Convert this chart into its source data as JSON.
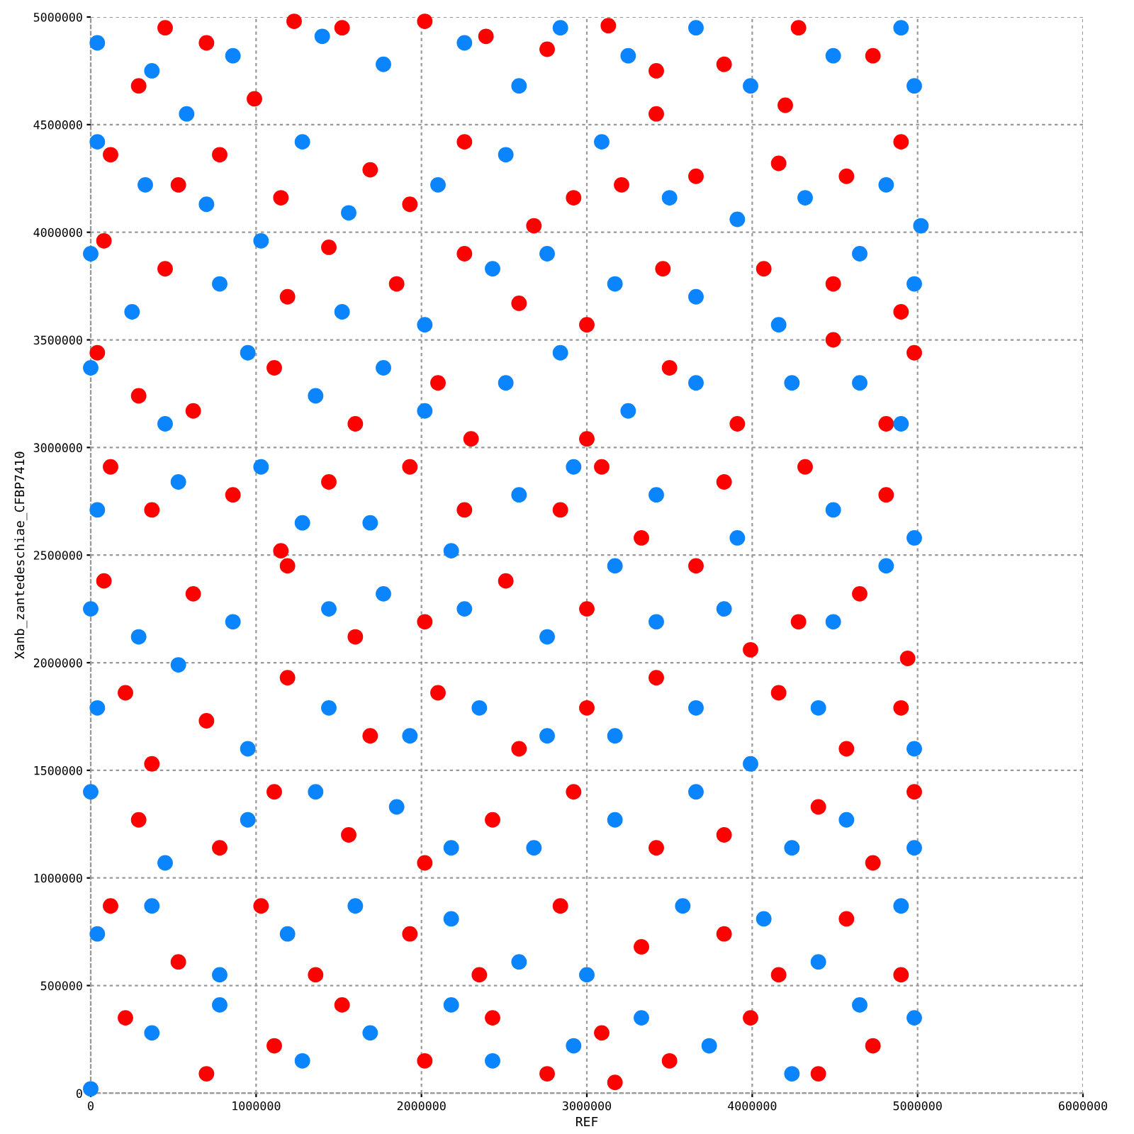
{
  "chart_data": {
    "type": "scatter",
    "xlabel": "REF",
    "ylabel": "Xanb_zantedeschiae_CFBP7410",
    "xlim": [
      0,
      6000000
    ],
    "ylim": [
      0,
      5000000
    ],
    "xticks": [
      0,
      1000000,
      2000000,
      3000000,
      4000000,
      5000000,
      6000000
    ],
    "yticks": [
      0,
      500000,
      1000000,
      1500000,
      2000000,
      2500000,
      3000000,
      3500000,
      4000000,
      4500000,
      5000000
    ],
    "grid": true,
    "marker": "circle",
    "series": [
      {
        "color": "#ff0000",
        "x": [
          450000,
          700000,
          1230000,
          1520000,
          2020000,
          2390000,
          2760000,
          3130000,
          3420000,
          3830000,
          4280000,
          4730000,
          4200000,
          3420000,
          290000,
          990000,
          120000,
          530000,
          1150000,
          1690000,
          2260000,
          2920000,
          3210000,
          3660000,
          4160000,
          4570000,
          4900000,
          780000,
          1930000,
          2680000,
          80000,
          450000,
          1190000,
          1440000,
          1850000,
          2260000,
          2590000,
          3000000,
          3460000,
          4490000,
          4900000,
          4070000,
          40000,
          290000,
          620000,
          1110000,
          1600000,
          2100000,
          2300000,
          3000000,
          3500000,
          3910000,
          4490000,
          4810000,
          4980000,
          120000,
          370000,
          860000,
          1150000,
          1440000,
          1930000,
          2260000,
          2840000,
          3090000,
          3330000,
          3830000,
          4320000,
          4810000,
          80000,
          620000,
          1190000,
          1600000,
          2020000,
          2510000,
          3000000,
          3660000,
          3990000,
          4280000,
          4650000,
          4940000,
          210000,
          700000,
          1190000,
          1690000,
          2100000,
          2590000,
          3000000,
          3420000,
          4160000,
          4570000,
          4900000,
          370000,
          290000,
          780000,
          1110000,
          1560000,
          2020000,
          2430000,
          2920000,
          3420000,
          3830000,
          4400000,
          4730000,
          4980000,
          120000,
          530000,
          1030000,
          1360000,
          1930000,
          2350000,
          2840000,
          3330000,
          3830000,
          4160000,
          4570000,
          4900000,
          210000,
          700000,
          1110000,
          1520000,
          2020000,
          2430000,
          2760000,
          3090000,
          3500000,
          3990000,
          4400000,
          4730000,
          3170000
        ],
        "values": [
          4950000,
          4880000,
          4980000,
          4950000,
          4980000,
          4910000,
          4850000,
          4960000,
          4750000,
          4780000,
          4950000,
          4820000,
          4590000,
          4550000,
          4680000,
          4620000,
          4360000,
          4220000,
          4160000,
          4290000,
          4420000,
          4160000,
          4220000,
          4260000,
          4320000,
          4260000,
          4420000,
          4360000,
          4130000,
          4030000,
          3960000,
          3830000,
          3700000,
          3930000,
          3760000,
          3900000,
          3670000,
          3570000,
          3830000,
          3760000,
          3630000,
          3830000,
          3440000,
          3240000,
          3170000,
          3370000,
          3110000,
          3300000,
          3040000,
          3040000,
          3370000,
          3110000,
          3500000,
          3110000,
          3440000,
          2910000,
          2710000,
          2780000,
          2520000,
          2840000,
          2910000,
          2710000,
          2710000,
          2910000,
          2580000,
          2840000,
          2910000,
          2780000,
          2380000,
          2320000,
          2450000,
          2120000,
          2190000,
          2380000,
          2250000,
          2450000,
          2060000,
          2190000,
          2320000,
          2020000,
          1860000,
          1730000,
          1930000,
          1660000,
          1860000,
          1600000,
          1790000,
          1930000,
          1860000,
          1600000,
          1790000,
          1530000,
          1270000,
          1140000,
          1400000,
          1200000,
          1070000,
          1270000,
          1400000,
          1140000,
          1200000,
          1330000,
          1070000,
          1400000,
          870000,
          610000,
          870000,
          550000,
          740000,
          550000,
          870000,
          680000,
          740000,
          550000,
          810000,
          550000,
          350000,
          90000,
          220000,
          410000,
          150000,
          350000,
          90000,
          280000,
          150000,
          350000,
          90000,
          220000,
          50000
        ]
      },
      {
        "color": "#0a84ff",
        "x": [
          40000,
          370000,
          860000,
          1400000,
          1770000,
          2260000,
          2590000,
          2840000,
          3250000,
          3660000,
          3990000,
          4490000,
          4900000,
          4980000,
          580000,
          40000,
          330000,
          700000,
          1280000,
          1560000,
          2100000,
          2510000,
          3090000,
          3500000,
          3910000,
          4320000,
          4810000,
          5020000,
          0,
          250000,
          780000,
          1030000,
          1520000,
          2020000,
          2430000,
          2760000,
          3170000,
          3660000,
          4160000,
          4650000,
          4980000,
          0,
          450000,
          950000,
          1360000,
          1770000,
          2020000,
          2510000,
          2840000,
          3250000,
          3660000,
          4240000,
          4650000,
          4900000,
          40000,
          530000,
          1030000,
          1280000,
          1690000,
          2180000,
          2590000,
          2920000,
          3420000,
          3910000,
          4490000,
          4980000,
          0,
          290000,
          860000,
          1440000,
          1770000,
          2260000,
          2760000,
          3170000,
          3420000,
          3830000,
          4490000,
          4810000,
          40000,
          530000,
          950000,
          1440000,
          1930000,
          2350000,
          2760000,
          3170000,
          3660000,
          3990000,
          4400000,
          4980000,
          0,
          450000,
          950000,
          1360000,
          1850000,
          2180000,
          2680000,
          3170000,
          3660000,
          4240000,
          4570000,
          4980000,
          40000,
          370000,
          780000,
          1190000,
          1600000,
          2180000,
          2590000,
          3000000,
          3580000,
          4070000,
          4400000,
          4900000,
          0,
          370000,
          780000,
          1280000,
          1690000,
          2180000,
          2430000,
          2920000,
          3330000,
          3740000,
          4240000,
          4650000,
          4980000
        ],
        "values": [
          4880000,
          4750000,
          4820000,
          4910000,
          4780000,
          4880000,
          4680000,
          4950000,
          4820000,
          4950000,
          4680000,
          4820000,
          4950000,
          4680000,
          4550000,
          4420000,
          4220000,
          4130000,
          4420000,
          4090000,
          4220000,
          4360000,
          4420000,
          4160000,
          4060000,
          4160000,
          4220000,
          4030000,
          3900000,
          3630000,
          3760000,
          3960000,
          3630000,
          3570000,
          3830000,
          3900000,
          3760000,
          3700000,
          3570000,
          3900000,
          3760000,
          3370000,
          3110000,
          3440000,
          3240000,
          3370000,
          3170000,
          3300000,
          3440000,
          3170000,
          3300000,
          3300000,
          3300000,
          3110000,
          2710000,
          2840000,
          2910000,
          2650000,
          2650000,
          2520000,
          2780000,
          2910000,
          2780000,
          2580000,
          2710000,
          2580000,
          2250000,
          2120000,
          2190000,
          2250000,
          2320000,
          2250000,
          2120000,
          2450000,
          2190000,
          2250000,
          2190000,
          2450000,
          1790000,
          1990000,
          1600000,
          1790000,
          1660000,
          1790000,
          1660000,
          1660000,
          1790000,
          1530000,
          1790000,
          1600000,
          1400000,
          1070000,
          1270000,
          1400000,
          1330000,
          1140000,
          1140000,
          1270000,
          1400000,
          1140000,
          1270000,
          1140000,
          740000,
          870000,
          550000,
          740000,
          870000,
          810000,
          610000,
          550000,
          870000,
          810000,
          610000,
          870000,
          20000,
          280000,
          410000,
          150000,
          280000,
          410000,
          150000,
          220000,
          350000,
          220000,
          90000,
          410000,
          350000
        ]
      }
    ]
  }
}
